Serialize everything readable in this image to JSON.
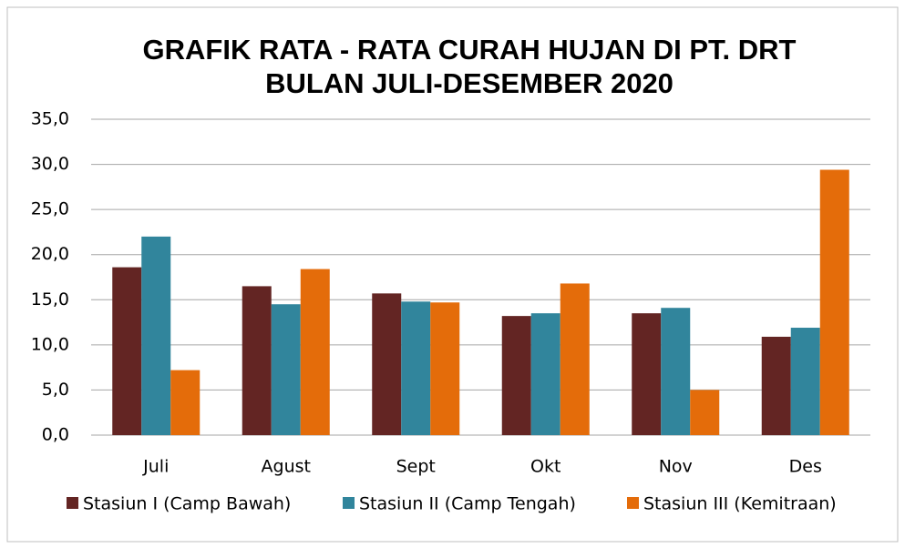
{
  "chart_data": {
    "type": "bar",
    "title": [
      "GRAFIK RATA - RATA CURAH HUJAN  DI PT. DRT",
      "BULAN JULI-DESEMBER 2020"
    ],
    "categories": [
      "Juli",
      "Agust",
      "Sept",
      "Okt",
      "Nov",
      "Des"
    ],
    "series": [
      {
        "name": "Stasiun I (Camp Bawah)",
        "color": "#632523",
        "values": [
          18.6,
          16.5,
          15.7,
          13.2,
          13.5,
          10.9
        ]
      },
      {
        "name": "Stasiun II (Camp Tengah)",
        "color": "#31859c",
        "values": [
          22.0,
          14.5,
          14.8,
          13.5,
          14.1,
          11.9
        ]
      },
      {
        "name": "Stasiun III (Kemitraan)",
        "color": "#e46c0a",
        "values": [
          7.2,
          18.4,
          14.7,
          16.8,
          5.0,
          29.4
        ]
      }
    ],
    "ylim": [
      0,
      35
    ],
    "yticks": [
      {
        "value": 0,
        "label": "0,0"
      },
      {
        "value": 5,
        "label": "5,0"
      },
      {
        "value": 10,
        "label": "10,0"
      },
      {
        "value": 15,
        "label": "15,0"
      },
      {
        "value": 20,
        "label": "20,0"
      },
      {
        "value": 25,
        "label": "25,0"
      },
      {
        "value": 30,
        "label": "30,0"
      },
      {
        "value": 35,
        "label": "35,0"
      }
    ],
    "grid": true,
    "legend": "bottom"
  }
}
